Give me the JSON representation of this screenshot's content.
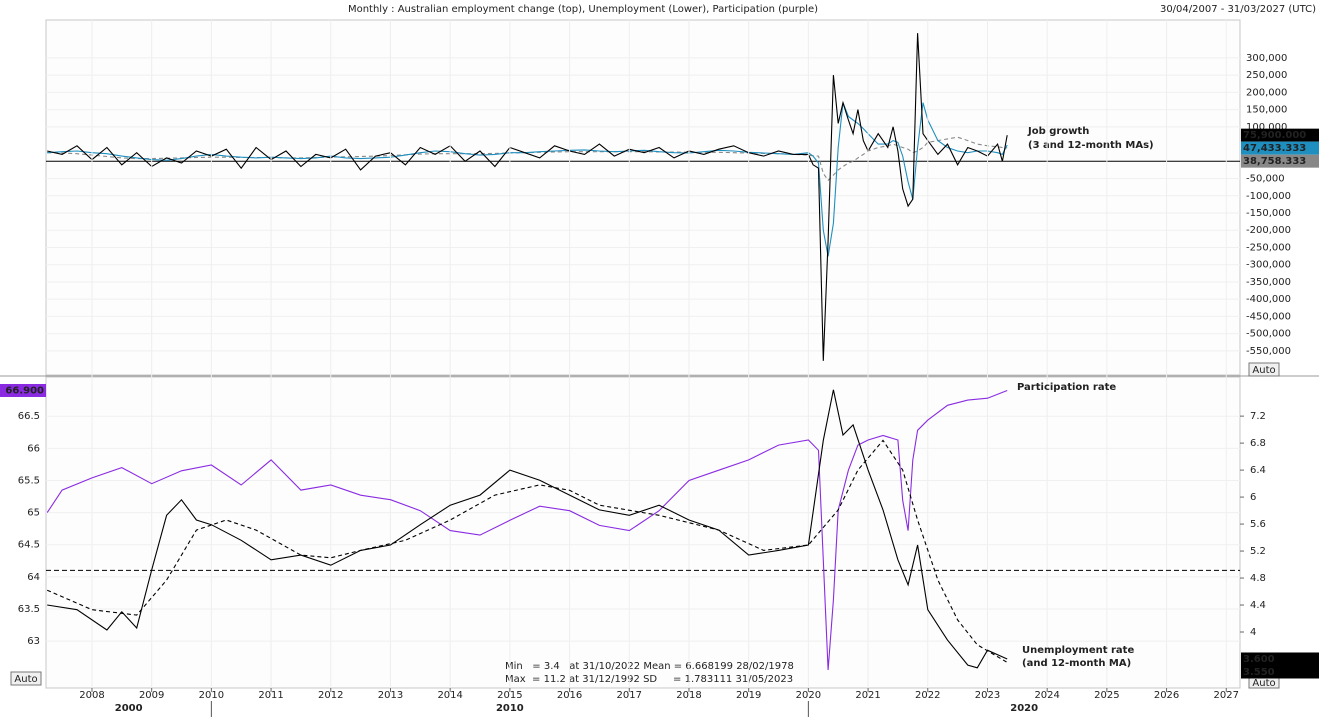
{
  "title": "Monthly : Australian employment change (top), Unemployment (Lower), Participation (purple)",
  "date_range": "30/04/2007 - 31/03/2027 (UTC)",
  "stats": [
    "Min   = 3.4   at 31/10/2022 Mean = 6.668199 28/02/1978",
    "Max  = 11.2 at 31/12/1992 SD     = 1.783111 31/05/2023"
  ],
  "buttons": [
    "Auto",
    "Auto",
    "Auto"
  ],
  "chart_data": [
    {
      "type": "line",
      "y_side": "right",
      "annotations": [
        "Job growth",
        "(3 and 12-month MAs)"
      ],
      "xlim": [
        2007.23,
        2027.23
      ],
      "ylim": [
        -620000,
        410000
      ],
      "yticks": [
        {
          "value": 300000,
          "label": "300,000"
        },
        {
          "value": 250000,
          "label": "250,000"
        },
        {
          "value": 200000,
          "label": "200,000"
        },
        {
          "value": 150000,
          "label": "150,000"
        },
        {
          "value": 100000,
          "label": "100,000"
        },
        {
          "value": -50000,
          "label": "-50,000"
        },
        {
          "value": -100000,
          "label": "-100,000"
        },
        {
          "value": -150000,
          "label": "-150,000"
        },
        {
          "value": -200000,
          "label": "-200,000"
        },
        {
          "value": -250000,
          "label": "-250,000"
        },
        {
          "value": -300000,
          "label": "-300,000"
        },
        {
          "value": -350000,
          "label": "-350,000"
        },
        {
          "value": -400000,
          "label": "-400,000"
        },
        {
          "value": -450000,
          "label": "-450,000"
        },
        {
          "value": -500000,
          "label": "-500,000"
        },
        {
          "value": -550000,
          "label": "-550,000"
        }
      ],
      "hline": 0,
      "x": [
        2007.25,
        2007.5,
        2007.75,
        2008,
        2008.25,
        2008.5,
        2008.75,
        2009,
        2009.25,
        2009.5,
        2009.75,
        2010,
        2010.25,
        2010.5,
        2010.75,
        2011,
        2011.25,
        2011.5,
        2011.75,
        2012,
        2012.25,
        2012.5,
        2012.75,
        2013,
        2013.25,
        2013.5,
        2013.75,
        2014,
        2014.25,
        2014.5,
        2014.75,
        2015,
        2015.25,
        2015.5,
        2015.75,
        2016,
        2016.25,
        2016.5,
        2016.75,
        2017,
        2017.25,
        2017.5,
        2017.75,
        2018,
        2018.25,
        2018.5,
        2018.75,
        2019,
        2019.25,
        2019.5,
        2019.75,
        2020,
        2020.08,
        2020.17,
        2020.25,
        2020.33,
        2020.42,
        2020.5,
        2020.58,
        2020.67,
        2020.75,
        2020.83,
        2020.92,
        2021,
        2021.17,
        2021.33,
        2021.42,
        2021.5,
        2021.58,
        2021.67,
        2021.75,
        2021.83,
        2021.92,
        2022,
        2022.17,
        2022.33,
        2022.5,
        2022.67,
        2022.83,
        2023,
        2023.17,
        2023.25,
        2023.33
      ],
      "series": [
        {
          "color": "#888888",
          "dash": true,
          "values": [
            25000,
            24000,
            22000,
            18000,
            14000,
            10000,
            8000,
            8000,
            9000,
            10000,
            11000,
            12000,
            12000,
            11000,
            11000,
            11000,
            10000,
            10000,
            11000,
            12000,
            13000,
            14000,
            15000,
            17000,
            19000,
            21000,
            22000,
            22000,
            22000,
            22000,
            23000,
            24000,
            25000,
            26000,
            27000,
            28000,
            28000,
            28000,
            28000,
            28000,
            28000,
            27000,
            27000,
            26000,
            26000,
            26000,
            25000,
            24000,
            23000,
            22000,
            20000,
            18000,
            16000,
            15000,
            -35000,
            -55000,
            -40000,
            -25000,
            -15000,
            -5000,
            0,
            10000,
            20000,
            30000,
            40000,
            45000,
            50000,
            45000,
            40000,
            35000,
            25000,
            30000,
            40000,
            55000,
            60000,
            65000,
            70000,
            60000,
            50000,
            45000,
            42000,
            40000,
            38758
          ],
          "last": {
            "value": 38758.333,
            "label": "38,758.333"
          }
        },
        {
          "color": "#1f8fc0",
          "dash": false,
          "values": [
            25000,
            28000,
            30000,
            25000,
            22000,
            15000,
            10000,
            5000,
            3000,
            8000,
            15000,
            20000,
            15000,
            12000,
            10000,
            12000,
            10000,
            8000,
            10000,
            15000,
            10000,
            8000,
            10000,
            12000,
            18000,
            25000,
            30000,
            28000,
            22000,
            18000,
            20000,
            25000,
            25000,
            28000,
            30000,
            32000,
            33000,
            30000,
            28000,
            30000,
            32000,
            28000,
            25000,
            24000,
            28000,
            32000,
            30000,
            26000,
            24000,
            22000,
            20000,
            25000,
            15000,
            -5000,
            -200000,
            -276000,
            -180000,
            40000,
            170000,
            130000,
            120000,
            110000,
            95000,
            80000,
            50000,
            50000,
            60000,
            55000,
            15000,
            -60000,
            -110000,
            40000,
            170000,
            120000,
            60000,
            40000,
            30000,
            25000,
            30000,
            30000,
            25000,
            20000,
            47433
          ],
          "last": {
            "value": 47433.333,
            "label": "47,433.333"
          }
        },
        {
          "color": "#000000",
          "dash": false,
          "values": [
            30000,
            20000,
            45000,
            5000,
            40000,
            -10000,
            25000,
            -15000,
            10000,
            -5000,
            30000,
            15000,
            35000,
            -20000,
            40000,
            5000,
            30000,
            -15000,
            20000,
            10000,
            35000,
            -25000,
            15000,
            25000,
            -10000,
            40000,
            20000,
            45000,
            0,
            30000,
            -15000,
            40000,
            25000,
            10000,
            45000,
            30000,
            20000,
            50000,
            15000,
            35000,
            25000,
            40000,
            10000,
            30000,
            20000,
            35000,
            45000,
            25000,
            15000,
            30000,
            20000,
            20000,
            -10000,
            -20000,
            -579000,
            -230000,
            250000,
            110000,
            170000,
            120000,
            80000,
            150000,
            60000,
            30000,
            80000,
            40000,
            100000,
            30000,
            -80000,
            -130000,
            -110000,
            372000,
            80000,
            60000,
            20000,
            50000,
            -10000,
            40000,
            30000,
            15000,
            50000,
            0,
            75900
          ],
          "last": {
            "value": 75900,
            "label": "75,900.000"
          }
        }
      ]
    },
    {
      "type": "line",
      "y_side": "left",
      "annotations": [
        "Participation rate",
        "Unemployment rate",
        "(and 12-month MA)"
      ],
      "xlim": [
        2007.23,
        2027.23
      ],
      "xticks": [
        2008,
        2009,
        2010,
        2011,
        2012,
        2013,
        2014,
        2015,
        2016,
        2017,
        2018,
        2019,
        2020,
        2021,
        2022,
        2023,
        2024,
        2025,
        2026,
        2027
      ],
      "decades": [
        2000,
        2010,
        2020
      ],
      "ylim": [
        62.27,
        67.11
      ],
      "yticks": [
        66.5,
        66,
        65.5,
        65,
        64.5,
        64,
        63.5,
        63
      ],
      "y2lim": [
        3.17,
        7.78
      ],
      "y2ticks": [
        7.2,
        6.8,
        6.4,
        6,
        5.6,
        5.2,
        4.8,
        4.4,
        4
      ],
      "hline": 64.1,
      "series": [
        {
          "color": "#8a2be2",
          "dash": false,
          "axis": "y",
          "x": [
            2007.25,
            2007.5,
            2008,
            2008.5,
            2009,
            2009.5,
            2010,
            2010.5,
            2011,
            2011.5,
            2012,
            2012.5,
            2013,
            2013.5,
            2014,
            2014.5,
            2015,
            2015.5,
            2016,
            2016.5,
            2017,
            2017.5,
            2018,
            2018.5,
            2019,
            2019.5,
            2020,
            2020.17,
            2020.33,
            2020.42,
            2020.5,
            2020.67,
            2020.83,
            2021,
            2021.25,
            2021.5,
            2021.58,
            2021.67,
            2021.75,
            2021.83,
            2022,
            2022.33,
            2022.67,
            2023,
            2023.33
          ],
          "values": [
            65.0,
            65.35,
            65.54,
            65.7,
            65.45,
            65.65,
            65.74,
            65.43,
            65.82,
            65.35,
            65.43,
            65.27,
            65.2,
            65.03,
            64.72,
            64.65,
            64.88,
            65.1,
            65.03,
            64.8,
            64.72,
            65.03,
            65.5,
            65.66,
            65.82,
            66.05,
            66.13,
            65.97,
            62.55,
            63.64,
            65.04,
            65.66,
            66.05,
            66.13,
            66.2,
            66.13,
            65.19,
            64.72,
            65.82,
            66.28,
            66.44,
            66.67,
            66.75,
            66.78,
            66.9
          ],
          "last": {
            "value": 66.9,
            "label": "66.900"
          }
        },
        {
          "color": "#000000",
          "dash": true,
          "axis": "y2",
          "x": [
            2007.25,
            2008,
            2008.75,
            2009.25,
            2009.75,
            2010.25,
            2010.75,
            2011.5,
            2012,
            2012.5,
            2013.25,
            2014,
            2014.75,
            2015.5,
            2016,
            2016.5,
            2017.5,
            2018.5,
            2019.25,
            2020,
            2020.5,
            2020.83,
            2021.25,
            2021.58,
            2021.83,
            2022.17,
            2022.5,
            2022.83,
            2023.33
          ],
          "values": [
            4.62,
            4.33,
            4.25,
            4.77,
            5.51,
            5.66,
            5.51,
            5.14,
            5.1,
            5.21,
            5.36,
            5.66,
            6.03,
            6.18,
            6.1,
            5.88,
            5.73,
            5.51,
            5.21,
            5.29,
            5.81,
            6.4,
            6.84,
            6.4,
            5.66,
            4.77,
            4.18,
            3.81,
            3.55
          ],
          "last": {
            "value": 3.55,
            "label": "3.550"
          }
        },
        {
          "color": "#000000",
          "dash": false,
          "axis": "y2",
          "x": [
            2007.25,
            2007.75,
            2008.25,
            2008.5,
            2008.75,
            2009,
            2009.25,
            2009.5,
            2009.75,
            2010,
            2010.5,
            2011,
            2011.5,
            2012,
            2012.5,
            2013,
            2013.5,
            2014,
            2014.5,
            2015,
            2015.5,
            2016,
            2016.5,
            2017,
            2017.5,
            2018,
            2018.5,
            2019,
            2019.5,
            2020,
            2020.25,
            2020.42,
            2020.58,
            2020.75,
            2021,
            2021.25,
            2021.5,
            2021.67,
            2021.83,
            2022,
            2022.33,
            2022.67,
            2022.83,
            2023,
            2023.33
          ],
          "values": [
            4.4,
            4.33,
            4.03,
            4.3,
            4.06,
            4.92,
            5.73,
            5.96,
            5.66,
            5.59,
            5.36,
            5.07,
            5.14,
            4.99,
            5.21,
            5.29,
            5.59,
            5.88,
            6.03,
            6.4,
            6.25,
            6.03,
            5.81,
            5.73,
            5.88,
            5.66,
            5.51,
            5.14,
            5.21,
            5.29,
            6.84,
            7.59,
            6.92,
            7.07,
            6.4,
            5.81,
            5.07,
            4.7,
            5.29,
            4.33,
            3.88,
            3.51,
            3.47,
            3.73,
            3.6
          ],
          "last": {
            "value": 3.6,
            "label": "3.600"
          }
        }
      ]
    }
  ]
}
